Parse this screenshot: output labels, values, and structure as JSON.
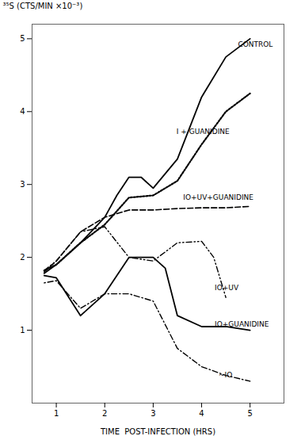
{
  "chart_data": {
    "type": "line",
    "xlabel": "TIME  POST-INFECTION (HRS)",
    "ylabel": "³⁵S (CTS/MIN ×10⁻³)",
    "xlim": [
      0.5,
      5.7
    ],
    "ylim": [
      0,
      5.2
    ],
    "xticks": [
      1,
      2,
      3,
      4,
      5
    ],
    "yticks": [
      1,
      2,
      3,
      4,
      5
    ],
    "series": [
      {
        "name": "CONTROL",
        "color": "#000000",
        "line_style": "solid",
        "x": [
          0.75,
          1.0,
          1.5,
          2.0,
          2.25,
          2.5,
          2.75,
          3.0,
          3.5,
          4.0,
          4.5,
          5.0
        ],
        "values": [
          1.78,
          1.9,
          2.2,
          2.55,
          2.85,
          3.1,
          3.1,
          2.95,
          3.35,
          4.2,
          4.75,
          5.0
        ]
      },
      {
        "name": "I + GUANIDINE",
        "color": "#000000",
        "line_style": "dotted",
        "x": [
          0.75,
          1.0,
          1.5,
          2.0,
          2.5,
          3.0,
          3.5,
          4.0,
          4.5,
          5.0
        ],
        "values": [
          1.82,
          1.9,
          2.2,
          2.45,
          2.82,
          2.85,
          3.05,
          3.55,
          4.0,
          4.25
        ]
      },
      {
        "name": "IO+UV+GUANIDINE",
        "color": "#000000",
        "line_style": "dashed",
        "x": [
          0.75,
          1.0,
          1.5,
          2.0,
          2.5,
          3.0,
          3.5,
          4.0,
          4.5,
          5.0
        ],
        "values": [
          1.8,
          1.95,
          2.35,
          2.55,
          2.65,
          2.65,
          2.67,
          2.68,
          2.68,
          2.7
        ]
      },
      {
        "name": "IO+UV",
        "color": "#000000",
        "line_style": "dashdotdot",
        "x": [
          0.75,
          1.0,
          1.5,
          2.0,
          2.5,
          3.0,
          3.5,
          4.0,
          4.25,
          4.5
        ],
        "values": [
          1.82,
          1.95,
          2.35,
          2.42,
          2.0,
          1.95,
          2.2,
          2.22,
          2.0,
          1.45
        ]
      },
      {
        "name": "IO+GUANIDINE",
        "color": "#000000",
        "line_style": "solid",
        "x": [
          0.75,
          1.0,
          1.5,
          2.0,
          2.5,
          3.0,
          3.25,
          3.5,
          4.0,
          4.5,
          5.0
        ],
        "values": [
          1.75,
          1.72,
          1.2,
          1.5,
          2.0,
          2.0,
          1.85,
          1.2,
          1.05,
          1.05,
          1.0
        ]
      },
      {
        "name": "IO",
        "color": "#000000",
        "line_style": "dashdot",
        "x": [
          0.75,
          1.0,
          1.5,
          2.0,
          2.5,
          3.0,
          3.5,
          4.0,
          4.5,
          5.0
        ],
        "values": [
          1.65,
          1.68,
          1.3,
          1.5,
          1.5,
          1.4,
          0.75,
          0.5,
          0.38,
          0.3
        ]
      }
    ],
    "annotations": [
      {
        "text": "CONTROL",
        "x": 4.75,
        "y": 4.92
      },
      {
        "text": "I + GUANIDINE",
        "x": 3.48,
        "y": 3.72
      },
      {
        "text": "IO+UV+GUANIDINE",
        "x": 3.62,
        "y": 2.82
      },
      {
        "text": "IO+UV",
        "x": 4.27,
        "y": 1.58
      },
      {
        "text": "IO+GUANIDINE",
        "x": 4.27,
        "y": 1.08
      },
      {
        "text": "~IO",
        "x": 4.35,
        "y": 0.38
      }
    ]
  }
}
